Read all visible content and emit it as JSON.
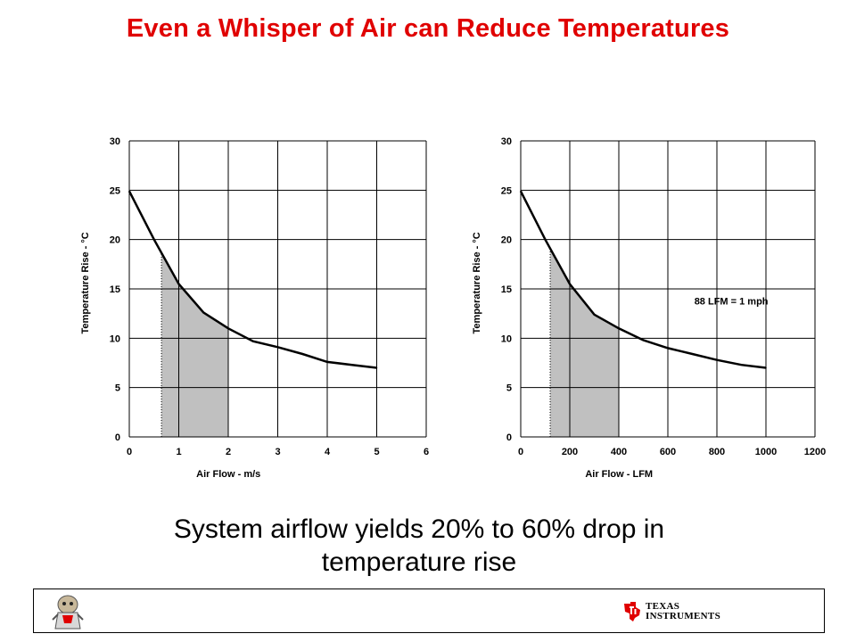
{
  "slide": {
    "title": "Even a Whisper of Air can Reduce Temperatures",
    "caption_line1": "System airflow yields 20% to 60% drop in",
    "caption_line2": "temperature rise",
    "footer": {
      "logo_line1": "TEXAS",
      "logo_line2": "INSTRUMENTS",
      "title_color": "#e00000",
      "logo_color": "#e00000"
    }
  },
  "chart_data": [
    {
      "type": "line",
      "title": "",
      "xlabel": "Air Flow - m/s",
      "ylabel": "Temperature Rise - °C",
      "xlim": [
        0,
        6
      ],
      "ylim": [
        0,
        30
      ],
      "xticks": [
        0,
        1,
        2,
        3,
        4,
        5,
        6
      ],
      "yticks": [
        0,
        5,
        10,
        15,
        20,
        25,
        30
      ],
      "grid": true,
      "series": [
        {
          "x": [
            0,
            0.5,
            1,
            1.5,
            2,
            2.5,
            3,
            3.5,
            4,
            4.5,
            5
          ],
          "y": [
            24.9,
            20.0,
            15.5,
            12.6,
            11.0,
            9.7,
            9.1,
            8.4,
            7.6,
            7.3,
            7.0
          ]
        }
      ],
      "shaded_region": {
        "x": [
          0.65,
          2
        ],
        "color": "#c0c0c0"
      },
      "annotations": []
    },
    {
      "type": "line",
      "title": "",
      "xlabel": "Air Flow - LFM",
      "ylabel": "Temperature Rise - °C",
      "xlim": [
        0,
        1200
      ],
      "ylim": [
        0,
        30
      ],
      "xticks": [
        0,
        200,
        400,
        600,
        800,
        1000,
        1200
      ],
      "yticks": [
        0,
        5,
        10,
        15,
        20,
        25,
        30
      ],
      "grid": true,
      "series": [
        {
          "x": [
            0,
            100,
            200,
            300,
            400,
            500,
            600,
            700,
            800,
            900,
            1000
          ],
          "y": [
            24.9,
            20.0,
            15.5,
            12.4,
            11.0,
            9.8,
            9.0,
            8.4,
            7.8,
            7.3,
            7.0
          ]
        }
      ],
      "shaded_region": {
        "x": [
          120,
          400
        ],
        "color": "#c0c0c0"
      },
      "annotations": [
        {
          "text": "88 LFM = 1 mph"
        }
      ]
    }
  ]
}
